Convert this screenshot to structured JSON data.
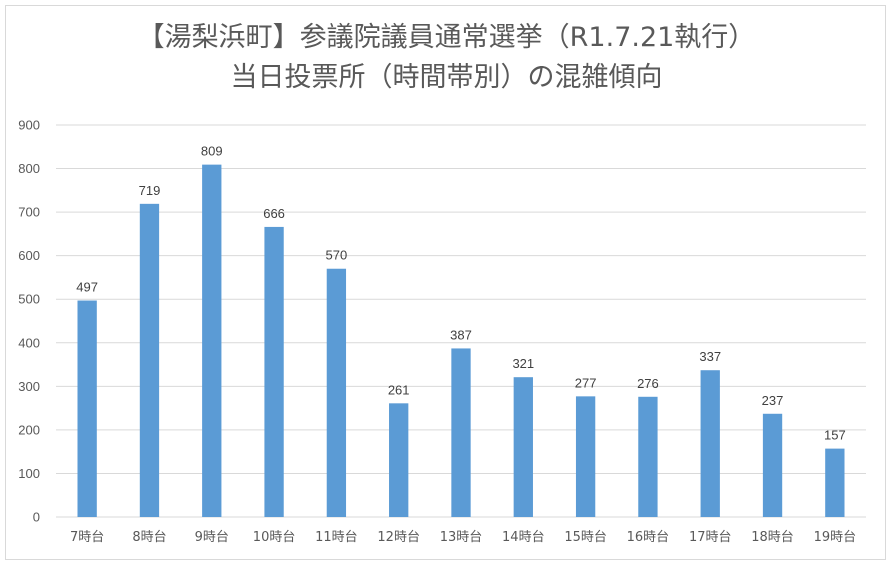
{
  "chart_data": {
    "type": "bar",
    "title": "【湯梨浜町】参議院議員通常選挙（R1.7.21執行）",
    "subtitle": "当日投票所（時間帯別）の混雑傾向",
    "categories": [
      "7時台",
      "8時台",
      "9時台",
      "10時台",
      "11時台",
      "12時台",
      "13時台",
      "14時台",
      "15時台",
      "16時台",
      "17時台",
      "18時台",
      "19時台"
    ],
    "values": [
      497,
      719,
      809,
      666,
      570,
      261,
      387,
      321,
      277,
      276,
      337,
      237,
      157
    ],
    "ylim": [
      0,
      900
    ],
    "yticks": [
      "0",
      "100",
      "200",
      "300",
      "400",
      "500",
      "600",
      "700",
      "800",
      "900"
    ],
    "grid": true,
    "data_labels": true,
    "bar_color": "#5b9bd5"
  }
}
